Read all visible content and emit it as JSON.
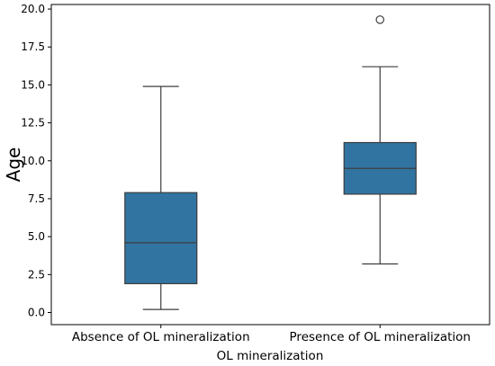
{
  "chart_data": {
    "type": "box",
    "title": "",
    "xlabel": "OL mineralization",
    "ylabel": "Age",
    "categories": [
      "Absence of OL mineralization",
      "Presence of OL mineralization"
    ],
    "ylim": [
      -0.8,
      20.3
    ],
    "yticks": [
      0.0,
      2.5,
      5.0,
      7.5,
      10.0,
      12.5,
      15.0,
      17.5,
      20.0
    ],
    "ytick_labels": [
      "0.0",
      "2.5",
      "5.0",
      "7.5",
      "10.0",
      "12.5",
      "15.0",
      "17.5",
      "20.0"
    ],
    "boxes": [
      {
        "category": "Absence of OL mineralization",
        "whisker_low": 0.2,
        "q1": 1.9,
        "median": 4.6,
        "q3": 7.9,
        "whisker_high": 14.9,
        "outliers": []
      },
      {
        "category": "Presence of OL mineralization",
        "whisker_low": 3.2,
        "q1": 7.8,
        "median": 9.5,
        "q3": 11.2,
        "whisker_high": 16.2,
        "outliers": [
          19.3
        ]
      }
    ],
    "box_color": "#3274a1",
    "line_color": "#3d3d3d",
    "grid": false,
    "legend": "none"
  }
}
